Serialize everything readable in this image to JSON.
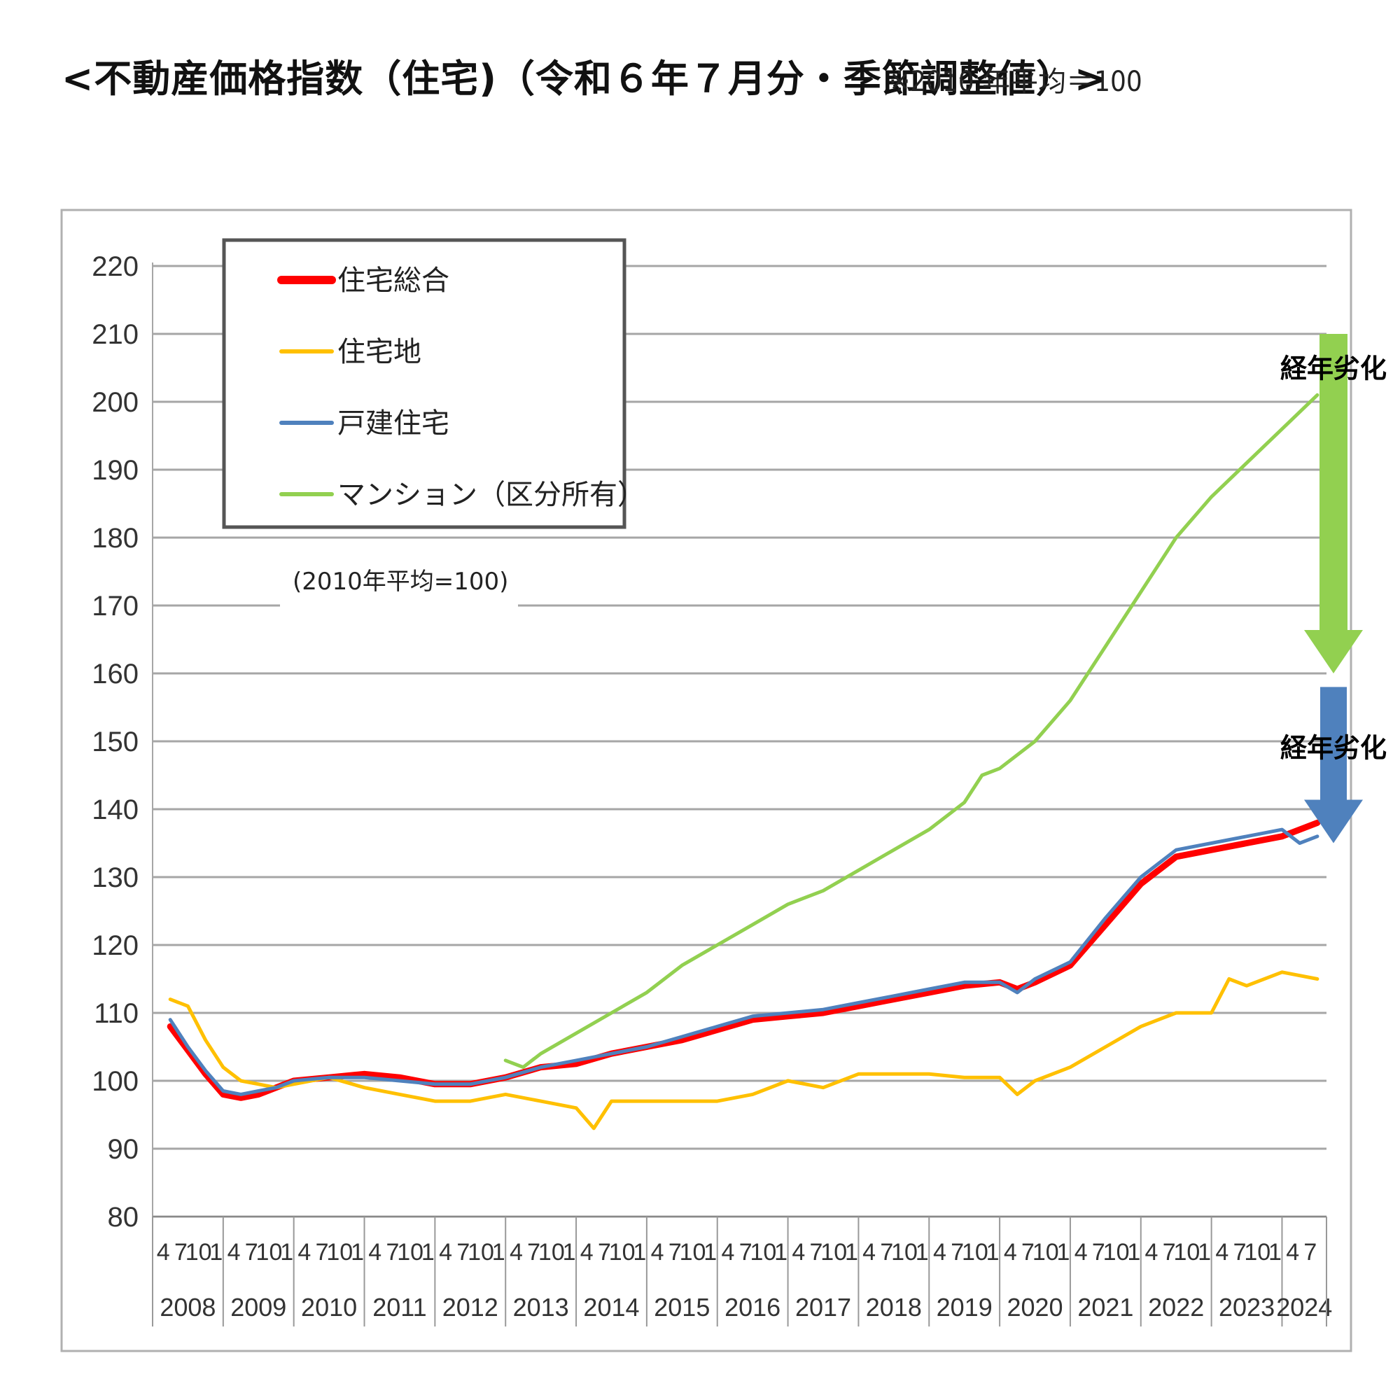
{
  "title": "<不動産価格指数（住宅)（令和６年７月分・季節調整値）>",
  "note": "※2010 年平均＝100",
  "chart_data": {
    "type": "line",
    "base_note": "(2010年平均=100)",
    "ylim": [
      80,
      220
    ],
    "yticks": [
      80,
      90,
      100,
      110,
      120,
      130,
      140,
      150,
      160,
      170,
      180,
      190,
      200,
      210,
      220
    ],
    "years": [
      "2008",
      "2009",
      "2010",
      "2011",
      "2012",
      "2013",
      "2014",
      "2015",
      "2016",
      "2017",
      "2018",
      "2019",
      "2020",
      "2021",
      "2022",
      "2023",
      "2024"
    ],
    "month_ticks": [
      "4",
      "7",
      "10",
      "1"
    ],
    "grid": true,
    "legend_position": "top-left",
    "series": [
      {
        "name": "住宅総合",
        "color": "#ff0000",
        "width": 9,
        "x": [
          2008.25,
          2008.5,
          2008.75,
          2009.0,
          2009.25,
          2009.5,
          2009.75,
          2010.0,
          2010.5,
          2011.0,
          2011.5,
          2012.0,
          2012.5,
          2013.0,
          2013.5,
          2014.0,
          2014.5,
          2015.0,
          2015.5,
          2016.0,
          2016.5,
          2017.0,
          2017.5,
          2018.0,
          2018.5,
          2019.0,
          2019.5,
          2020.0,
          2020.25,
          2020.5,
          2021.0,
          2021.5,
          2022.0,
          2022.5,
          2023.0,
          2023.5,
          2024.0,
          2024.5
        ],
        "y": [
          108,
          104.5,
          101,
          98,
          97.5,
          98,
          99,
          100,
          100.5,
          101,
          100.5,
          99.5,
          99.5,
          100.5,
          102,
          102.5,
          104,
          105,
          106,
          107.5,
          109,
          109.5,
          110,
          111,
          112,
          113,
          114,
          114.5,
          113.5,
          114.5,
          117,
          123,
          129,
          133,
          134,
          135,
          136,
          138
        ]
      },
      {
        "name": "住宅地",
        "color": "#ffc000",
        "width": 5,
        "x": [
          2008.25,
          2008.5,
          2008.75,
          2009.0,
          2009.25,
          2009.5,
          2009.75,
          2010.0,
          2010.5,
          2011.0,
          2011.5,
          2012.0,
          2012.5,
          2013.0,
          2013.5,
          2014.0,
          2014.25,
          2014.5,
          2015.0,
          2015.5,
          2016.0,
          2016.5,
          2017.0,
          2017.5,
          2018.0,
          2018.5,
          2019.0,
          2019.5,
          2020.0,
          2020.25,
          2020.5,
          2021.0,
          2021.5,
          2022.0,
          2022.5,
          2023.0,
          2023.25,
          2023.5,
          2024.0,
          2024.5
        ],
        "y": [
          112,
          111,
          106,
          102,
          100,
          99.5,
          99,
          99.5,
          100.5,
          99,
          98,
          97,
          97,
          98,
          97,
          96,
          93,
          97,
          97,
          97,
          97,
          98,
          100,
          99,
          101,
          101,
          101,
          100.5,
          100.5,
          98,
          100,
          102,
          105,
          108,
          110,
          110,
          115,
          114,
          116,
          115
        ]
      },
      {
        "name": "戸建住宅",
        "color": "#4f81bd",
        "width": 5,
        "x": [
          2008.25,
          2008.5,
          2008.75,
          2009.0,
          2009.25,
          2009.5,
          2009.75,
          2010.0,
          2010.5,
          2011.0,
          2011.5,
          2012.0,
          2012.5,
          2013.0,
          2013.5,
          2014.0,
          2014.5,
          2015.0,
          2015.5,
          2016.0,
          2016.5,
          2017.0,
          2017.5,
          2018.0,
          2018.5,
          2019.0,
          2019.5,
          2020.0,
          2020.25,
          2020.5,
          2021.0,
          2021.5,
          2022.0,
          2022.5,
          2023.0,
          2023.5,
          2024.0,
          2024.25,
          2024.5
        ],
        "y": [
          109,
          105,
          101.5,
          98.5,
          98,
          98.5,
          99,
          100,
          100.5,
          100.5,
          100,
          99.5,
          99.5,
          100.5,
          102,
          103,
          104,
          105,
          106.5,
          108,
          109.5,
          110,
          110.5,
          111.5,
          112.5,
          113.5,
          114.5,
          114.5,
          113,
          115,
          117.5,
          124,
          130,
          134,
          135,
          136,
          137,
          135,
          136
        ]
      },
      {
        "name": "マンション（区分所有）",
        "color": "#92d050",
        "width": 5,
        "x": [
          2013.0,
          2013.25,
          2013.5,
          2014.0,
          2014.5,
          2015.0,
          2015.5,
          2016.0,
          2016.5,
          2017.0,
          2017.5,
          2018.0,
          2018.5,
          2019.0,
          2019.5,
          2019.75,
          2020.0,
          2020.5,
          2021.0,
          2021.5,
          2022.0,
          2022.5,
          2023.0,
          2023.5,
          2024.0,
          2024.5
        ],
        "y": [
          103,
          102,
          104,
          107,
          110,
          113,
          117,
          120,
          123,
          126,
          128,
          131,
          134,
          137,
          141,
          145,
          146,
          150,
          156,
          164,
          172,
          180,
          186,
          191,
          196,
          201
        ]
      }
    ],
    "annotations": [
      {
        "text": "経年劣化",
        "color": "#92d050",
        "from": 210,
        "to": 160
      },
      {
        "text": "経年劣化",
        "color": "#4f81bd",
        "from": 158,
        "to": 135
      }
    ]
  }
}
